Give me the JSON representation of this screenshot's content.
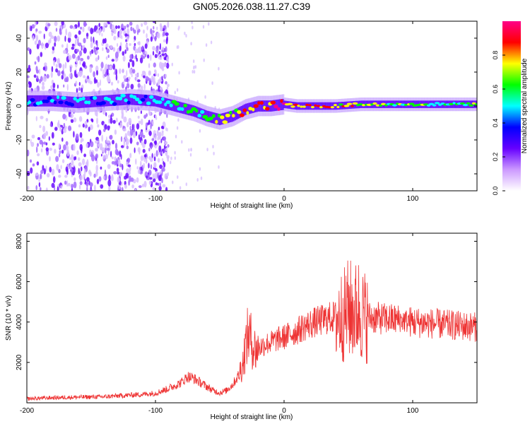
{
  "title": "GN05.2026.038.11.27.C39",
  "chart_data": [
    {
      "type": "heatmap",
      "name": "spectrogram",
      "xlabel": "Height of straight line (km)",
      "ylabel": "Frequency (Hz)",
      "xlim": [
        -200,
        150
      ],
      "ylim": [
        -50,
        50
      ],
      "xticks": [
        -200,
        -100,
        0,
        100
      ],
      "yticks": [
        -40,
        -20,
        0,
        20,
        40
      ],
      "grid": false,
      "colorbar": {
        "label": "Normalized spectral amplitude",
        "range": [
          0,
          1
        ],
        "ticks": [
          0.0,
          0.2,
          0.4,
          0.6,
          0.8
        ],
        "tick_labels": [
          "0.0",
          "0.2",
          "0.4",
          "0.6",
          "0.8"
        ],
        "colormap": [
          "#ffffff",
          "#cc99ff",
          "#6600ff",
          "#0000ff",
          "#00ffff",
          "#00ff00",
          "#ffff00",
          "#ff0000",
          "#ff0088"
        ]
      },
      "ridge": {
        "x": [
          -200,
          -180,
          -160,
          -140,
          -120,
          -100,
          -90,
          -80,
          -70,
          -60,
          -50,
          -40,
          -30,
          -20,
          -10,
          0,
          10,
          20,
          40,
          60,
          80,
          100,
          120,
          150
        ],
        "freq": [
          3,
          3,
          2,
          3,
          4,
          3,
          1,
          -1,
          -3,
          -6,
          -8,
          -6,
          -2,
          0,
          0,
          1,
          0,
          0,
          0,
          1,
          1,
          1,
          1,
          1
        ],
        "amplitude": [
          0.45,
          0.4,
          0.4,
          0.45,
          0.5,
          0.45,
          0.5,
          0.55,
          0.6,
          0.6,
          0.65,
          0.7,
          0.8,
          0.85,
          0.9,
          0.9,
          0.85,
          0.8,
          0.75,
          0.7,
          0.65,
          0.65,
          0.6,
          0.6
        ]
      },
      "scatter_noise_region": [
        -200,
        -105
      ]
    },
    {
      "type": "line",
      "name": "snr",
      "xlabel": "Height of straight line (km)",
      "ylabel": "SNR (10 * v/v)",
      "xlim": [
        -200,
        150
      ],
      "ylim": [
        0,
        8400
      ],
      "xticks": [
        -200,
        -100,
        0,
        100
      ],
      "yticks": [
        2000,
        4000,
        6000,
        8000
      ],
      "grid": false,
      "series": [
        {
          "name": "SNR",
          "color": "#ee3333",
          "x": [
            -200,
            -180,
            -160,
            -140,
            -120,
            -110,
            -100,
            -90,
            -80,
            -75,
            -70,
            -65,
            -60,
            -55,
            -50,
            -45,
            -40,
            -35,
            -32,
            -30,
            -28,
            -26,
            -24,
            -22,
            -20,
            -15,
            -10,
            -5,
            0,
            5,
            10,
            15,
            20,
            25,
            30,
            35,
            40,
            45,
            48,
            50,
            52,
            55,
            58,
            60,
            62,
            65,
            70,
            80,
            90,
            95,
            100,
            110,
            120,
            130,
            140,
            150
          ],
          "y": [
            200,
            250,
            280,
            300,
            380,
            420,
            480,
            700,
            1000,
            1300,
            1200,
            1000,
            800,
            600,
            500,
            600,
            900,
            1400,
            2000,
            2800,
            3400,
            3200,
            2800,
            2600,
            2700,
            2900,
            3000,
            3150,
            3250,
            3400,
            3550,
            3750,
            3900,
            4000,
            4100,
            4200,
            4250,
            4300,
            4400,
            4700,
            4600,
            4500,
            4700,
            4400,
            4300,
            4250,
            4200,
            4150,
            4100,
            4050,
            4000,
            3950,
            3900,
            3850,
            3800,
            3750
          ]
        }
      ]
    }
  ]
}
